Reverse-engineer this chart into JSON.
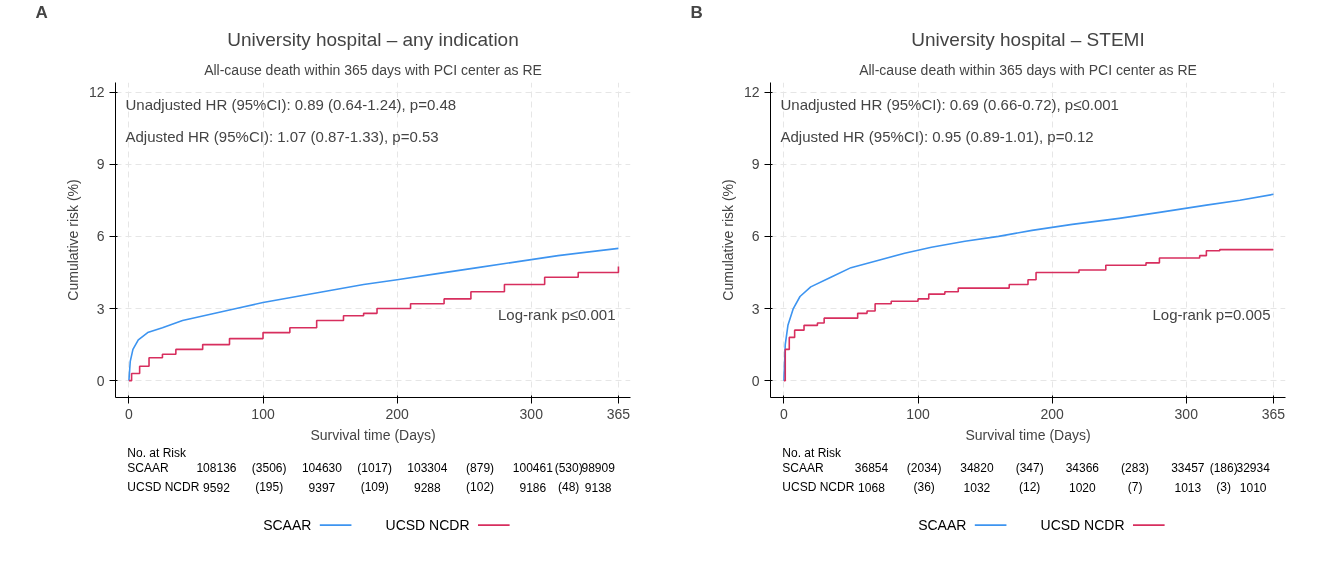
{
  "chart_data": [
    {
      "type": "step",
      "title": "University hospital – any indication",
      "subtitle": "All-cause death within 365 days with PCI center as RE",
      "xlabel": "Survival time (Days)",
      "ylabel": "Cumulative risk (%)",
      "xlim": [
        -10,
        374
      ],
      "xticks": [
        0,
        100,
        200,
        300,
        365
      ],
      "ylim": [
        -0.7,
        12.4
      ],
      "yticks": [
        0,
        3,
        6,
        9,
        12
      ],
      "grid": true,
      "legend": "bottom",
      "line_style": "solid",
      "annotations": [
        "A",
        "Unadjusted HR (95%CI): 0.89 (0.64-1.24), p=0.48",
        "Adjusted HR (95%CI): 1.07 (0.87-1.33), p=0.53",
        "Log-rank p≤0.001",
        "No. at Risk",
        "108136",
        "(3506)",
        "104630",
        "(1017)",
        "103304",
        "(879)",
        "100461",
        "(530)",
        "98909",
        "9592",
        "(195)",
        "9397",
        "(109)",
        "9288",
        "(102)",
        "9186",
        "(48)",
        "9138"
      ],
      "series": [
        {
          "name": "SCAAR",
          "color": "#3d94f0",
          "type": "line",
          "x": [
            0,
            1,
            3,
            7,
            14,
            25,
            40,
            60,
            80,
            100,
            125,
            150,
            175,
            200,
            230,
            260,
            290,
            320,
            365
          ],
          "values": [
            0,
            0.8,
            1.3,
            1.7,
            2.0,
            2.2,
            2.5,
            2.75,
            3.0,
            3.25,
            3.5,
            3.75,
            4.0,
            4.2,
            4.45,
            4.7,
            4.95,
            5.2,
            5.5
          ]
        },
        {
          "name": "UCSD NCDR",
          "color": "#d72e5e",
          "x": [
            0,
            2,
            8,
            15,
            25,
            35,
            55,
            75,
            100,
            120,
            140,
            160,
            175,
            185,
            210,
            235,
            255,
            280,
            310,
            335,
            365
          ],
          "values": [
            0,
            0.3,
            0.6,
            0.95,
            1.1,
            1.3,
            1.5,
            1.75,
            2.0,
            2.2,
            2.5,
            2.7,
            2.8,
            3.0,
            3.2,
            3.4,
            3.7,
            4.0,
            4.3,
            4.5,
            4.75
          ]
        }
      ]
    },
    {
      "type": "step",
      "title": "University hospital – STEMI",
      "subtitle": "All-cause death within 365 days with PCI center as RE",
      "xlabel": "Survival time (Days)",
      "ylabel": "Cumulative risk (%)",
      "xlim": [
        -10,
        374
      ],
      "xticks": [
        0,
        100,
        200,
        300,
        365
      ],
      "ylim": [
        -0.7,
        12.4
      ],
      "yticks": [
        0,
        3,
        6,
        9,
        12
      ],
      "grid": true,
      "legend": "bottom",
      "line_style": "solid",
      "annotations": [
        "B",
        "Unadjusted HR (95%CI): 0.69 (0.66-0.72), p≤0.001",
        "Adjusted HR (95%CI): 0.95 (0.89-1.01), p=0.12",
        "Log-rank p=0.005",
        "No. at Risk",
        "36854",
        "(2034)",
        "34820",
        "(347)",
        "34366",
        "(283)",
        "33457",
        "(186)",
        "32934",
        "1068",
        "(36)",
        "1032",
        "(12)",
        "1020",
        "(7)",
        "1013",
        "(3)",
        "1010"
      ],
      "series": [
        {
          "name": "SCAAR",
          "color": "#3d94f0",
          "type": "line",
          "x": [
            0,
            1,
            3,
            7,
            12,
            20,
            35,
            50,
            70,
            90,
            110,
            135,
            160,
            185,
            215,
            250,
            280,
            315,
            340,
            365
          ],
          "values": [
            0,
            1.5,
            2.3,
            3.0,
            3.5,
            3.9,
            4.3,
            4.7,
            5.0,
            5.3,
            5.55,
            5.8,
            6.0,
            6.25,
            6.5,
            6.75,
            7.0,
            7.3,
            7.5,
            7.75
          ]
        },
        {
          "name": "UCSD NCDR",
          "color": "#d72e5e",
          "x": [
            0,
            1,
            4,
            8,
            15,
            25,
            30,
            55,
            62,
            68,
            80,
            100,
            108,
            120,
            130,
            168,
            182,
            188,
            220,
            240,
            270,
            280,
            310,
            315,
            325,
            365
          ],
          "values": [
            0,
            1.3,
            1.8,
            2.1,
            2.3,
            2.4,
            2.6,
            2.8,
            2.9,
            3.2,
            3.3,
            3.4,
            3.6,
            3.7,
            3.85,
            4.0,
            4.2,
            4.5,
            4.6,
            4.8,
            4.9,
            5.1,
            5.2,
            5.4,
            5.45,
            5.45
          ]
        }
      ]
    }
  ]
}
